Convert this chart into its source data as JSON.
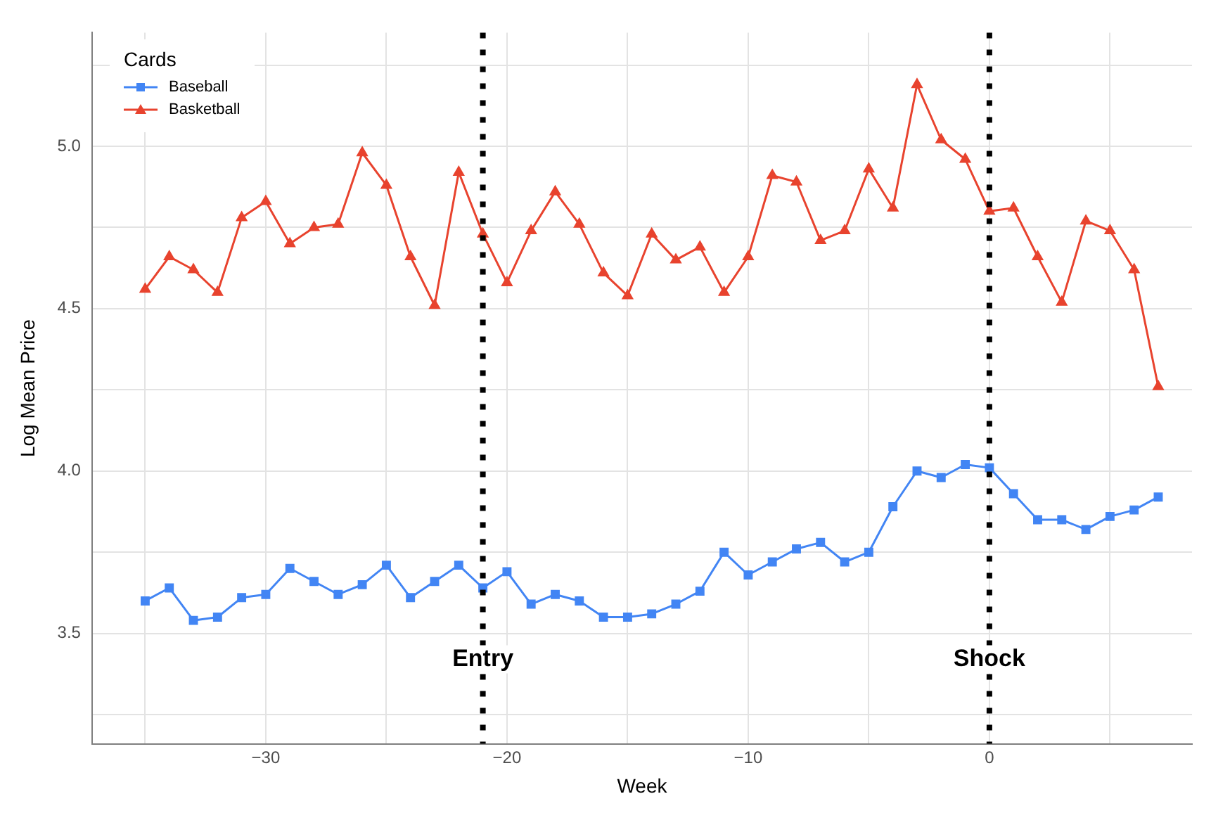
{
  "chart_data": {
    "type": "line",
    "xlabel": "Week",
    "ylabel": "Log Mean Price",
    "legend_title": "Cards",
    "legend": "top left",
    "grid": true,
    "x": [
      -35,
      -34,
      -33,
      -32,
      -31,
      -30,
      -29,
      -28,
      -27,
      -26,
      -25,
      -24,
      -23,
      -22,
      -21,
      -20,
      -19,
      -18,
      -17,
      -16,
      -15,
      -14,
      -13,
      -12,
      -11,
      -10,
      -9,
      -8,
      -7,
      -6,
      -5,
      -4,
      -3,
      -2,
      -1,
      0,
      1,
      2,
      3,
      4,
      5,
      6,
      7
    ],
    "series": [
      {
        "name": "Baseball",
        "color": "#4285f4",
        "marker": "square",
        "values": [
          3.6,
          3.64,
          3.54,
          3.55,
          3.61,
          3.62,
          3.7,
          3.66,
          3.62,
          3.65,
          3.71,
          3.61,
          3.66,
          3.71,
          3.64,
          3.69,
          3.59,
          3.62,
          3.6,
          3.55,
          3.55,
          3.56,
          3.59,
          3.63,
          3.75,
          3.68,
          3.72,
          3.76,
          3.78,
          3.72,
          3.75,
          3.89,
          4.0,
          3.98,
          4.02,
          4.01,
          3.93,
          3.85,
          3.85,
          3.82,
          3.86,
          3.88,
          3.92
        ]
      },
      {
        "name": "Basketball",
        "color": "#e8432e",
        "marker": "triangle",
        "values": [
          4.56,
          4.66,
          4.62,
          4.55,
          4.78,
          4.83,
          4.7,
          4.75,
          4.76,
          4.98,
          4.88,
          4.66,
          4.51,
          4.92,
          4.73,
          4.58,
          4.74,
          4.86,
          4.76,
          4.61,
          4.54,
          4.73,
          4.65,
          4.69,
          4.55,
          4.66,
          4.91,
          4.89,
          4.71,
          4.74,
          4.93,
          4.81,
          5.19,
          5.02,
          4.96,
          4.8,
          4.81,
          4.66,
          4.52,
          4.77,
          4.74,
          4.62,
          4.26
        ]
      }
    ],
    "xlim": [
      -37.2,
      8.4
    ],
    "xticks": [
      {
        "value": -35,
        "label": null
      },
      {
        "value": -30,
        "label": "−30"
      },
      {
        "value": -25,
        "label": null
      },
      {
        "value": -20,
        "label": "−20"
      },
      {
        "value": -15,
        "label": null
      },
      {
        "value": -10,
        "label": "−10"
      },
      {
        "value": -5,
        "label": null
      },
      0,
      {
        "value": 5,
        "label": null
      }
    ],
    "ylim": [
      3.16,
      5.35
    ],
    "yticks": [
      {
        "value": 3.25,
        "label": null
      },
      3.5,
      {
        "value": 3.75,
        "label": null
      },
      {
        "value": 4.0,
        "label": "4.0"
      },
      {
        "value": 4.25,
        "label": null
      },
      4.5,
      {
        "value": 4.75,
        "label": null
      },
      {
        "value": 5.0,
        "label": "5.0"
      },
      {
        "value": 5.25,
        "label": null
      }
    ],
    "ref_lines": [
      {
        "axis": "x",
        "value": -21,
        "label": "Entry",
        "color": "#000000",
        "line_style": "dotted"
      },
      {
        "axis": "x",
        "value": 0,
        "label": "Shock",
        "color": "#000000",
        "line_style": "dotted"
      }
    ]
  }
}
